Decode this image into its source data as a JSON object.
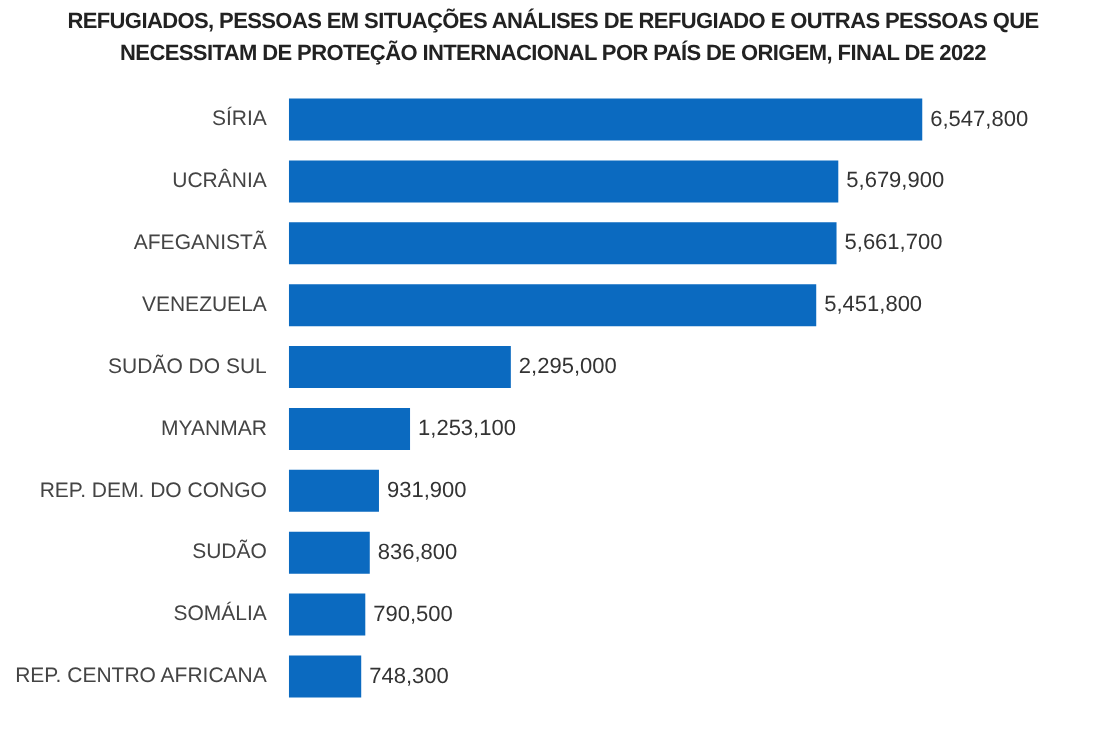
{
  "chart_data": {
    "type": "bar",
    "orientation": "horizontal",
    "title": "REFUGIADOS, PESSOAS EM SITUAÇÕES ANÁLISES DE REFUGIADO E OUTRAS PESSOAS QUE NECESSITAM DE PROTEÇÃO INTERNACIONAL POR PAÍS DE ORIGEM, FINAL DE 2022",
    "categories": [
      "SÍRIA",
      "UCRÂNIA",
      "AFEGANISTÃ",
      "VENEZUELA",
      "SUDÃO DO SUL",
      "MYANMAR",
      "REP. DEM. DO CONGO",
      "SUDÃO",
      "SOMÁLIA",
      "REP. CENTRO AFRICANA"
    ],
    "values": [
      6547800,
      5679900,
      5661700,
      5451800,
      2295000,
      1253100,
      931900,
      836800,
      790500,
      748300
    ],
    "value_labels": [
      "6,547,800",
      "5,679,900",
      "5,661,700",
      "5,451,800",
      "2,295,000",
      "1,253,100",
      "931,900",
      "836,800",
      "790,500",
      "748,300"
    ],
    "color": "#0b6ac0"
  }
}
